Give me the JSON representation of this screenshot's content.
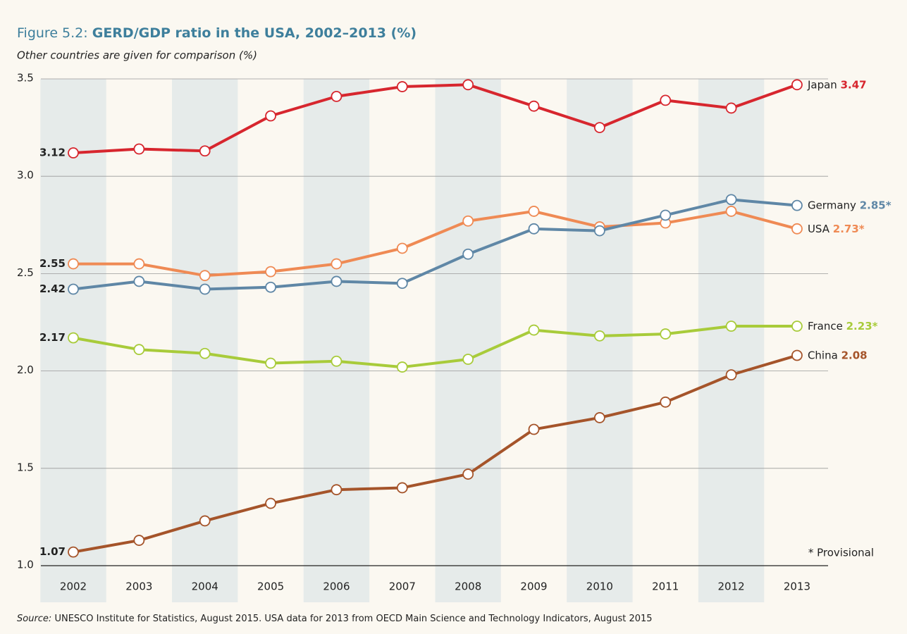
{
  "chart_data": {
    "type": "line",
    "figure_label": "Figure 5.2:",
    "title": "GERD/GDP ratio in the USA, 2002–2013 (%)",
    "subtitle": "Other countries are given for comparison (%)",
    "note": "* Provisional",
    "source_label": "Source:",
    "source": "UNESCO Institute for Statistics, August 2015. USA data for 2013 from OECD Main Science and Technology Indicators, August 2015",
    "categories": [
      "2002",
      "2003",
      "2004",
      "2005",
      "2006",
      "2007",
      "2008",
      "2009",
      "2010",
      "2011",
      "2012",
      "2013"
    ],
    "ylim": [
      1.0,
      3.5
    ],
    "yticks": [
      {
        "value": 1,
        "label": "1.0"
      },
      1.5,
      {
        "value": 2,
        "label": "2.0"
      },
      2.5,
      {
        "value": 3,
        "label": "3.0"
      },
      3.5
    ],
    "grid": true,
    "series": [
      {
        "name": "Japan",
        "color": "#d7262e",
        "values": [
          3.12,
          3.14,
          3.13,
          3.31,
          3.41,
          3.46,
          3.47,
          3.36,
          3.25,
          3.39,
          3.35,
          3.47
        ],
        "value_labels": [
          "3.12",
          null,
          null,
          null,
          null,
          null,
          null,
          null,
          null,
          null,
          null,
          "3.47"
        ]
      },
      {
        "name": "USA",
        "color": "#ef8a54",
        "values": [
          2.55,
          2.55,
          2.49,
          2.51,
          2.55,
          2.63,
          2.77,
          2.82,
          2.74,
          2.76,
          2.82,
          2.73
        ],
        "value_labels": [
          "2.55",
          null,
          null,
          null,
          null,
          null,
          null,
          null,
          null,
          null,
          null,
          "2.73*"
        ]
      },
      {
        "name": "Germany",
        "color": "#5f87a6",
        "values": [
          2.42,
          2.46,
          2.42,
          2.43,
          2.46,
          2.45,
          2.6,
          2.73,
          2.72,
          2.8,
          2.88,
          2.85
        ],
        "value_labels": [
          "2.42",
          null,
          null,
          null,
          null,
          null,
          null,
          null,
          null,
          null,
          null,
          "2.85*"
        ]
      },
      {
        "name": "France",
        "color": "#a8cb3a",
        "values": [
          2.17,
          2.11,
          2.09,
          2.04,
          2.05,
          2.02,
          2.06,
          2.21,
          2.18,
          2.19,
          2.23,
          2.23
        ],
        "value_labels": [
          "2.17",
          null,
          null,
          null,
          null,
          null,
          null,
          null,
          null,
          null,
          null,
          "2.23*"
        ]
      },
      {
        "name": "China",
        "color": "#a5542a",
        "values": [
          1.07,
          1.13,
          1.23,
          1.32,
          1.39,
          1.4,
          1.47,
          1.7,
          1.76,
          1.84,
          1.98,
          2.08
        ],
        "value_labels": [
          "1.07",
          null,
          null,
          null,
          null,
          null,
          null,
          null,
          null,
          null,
          null,
          "2.08"
        ]
      }
    ]
  }
}
